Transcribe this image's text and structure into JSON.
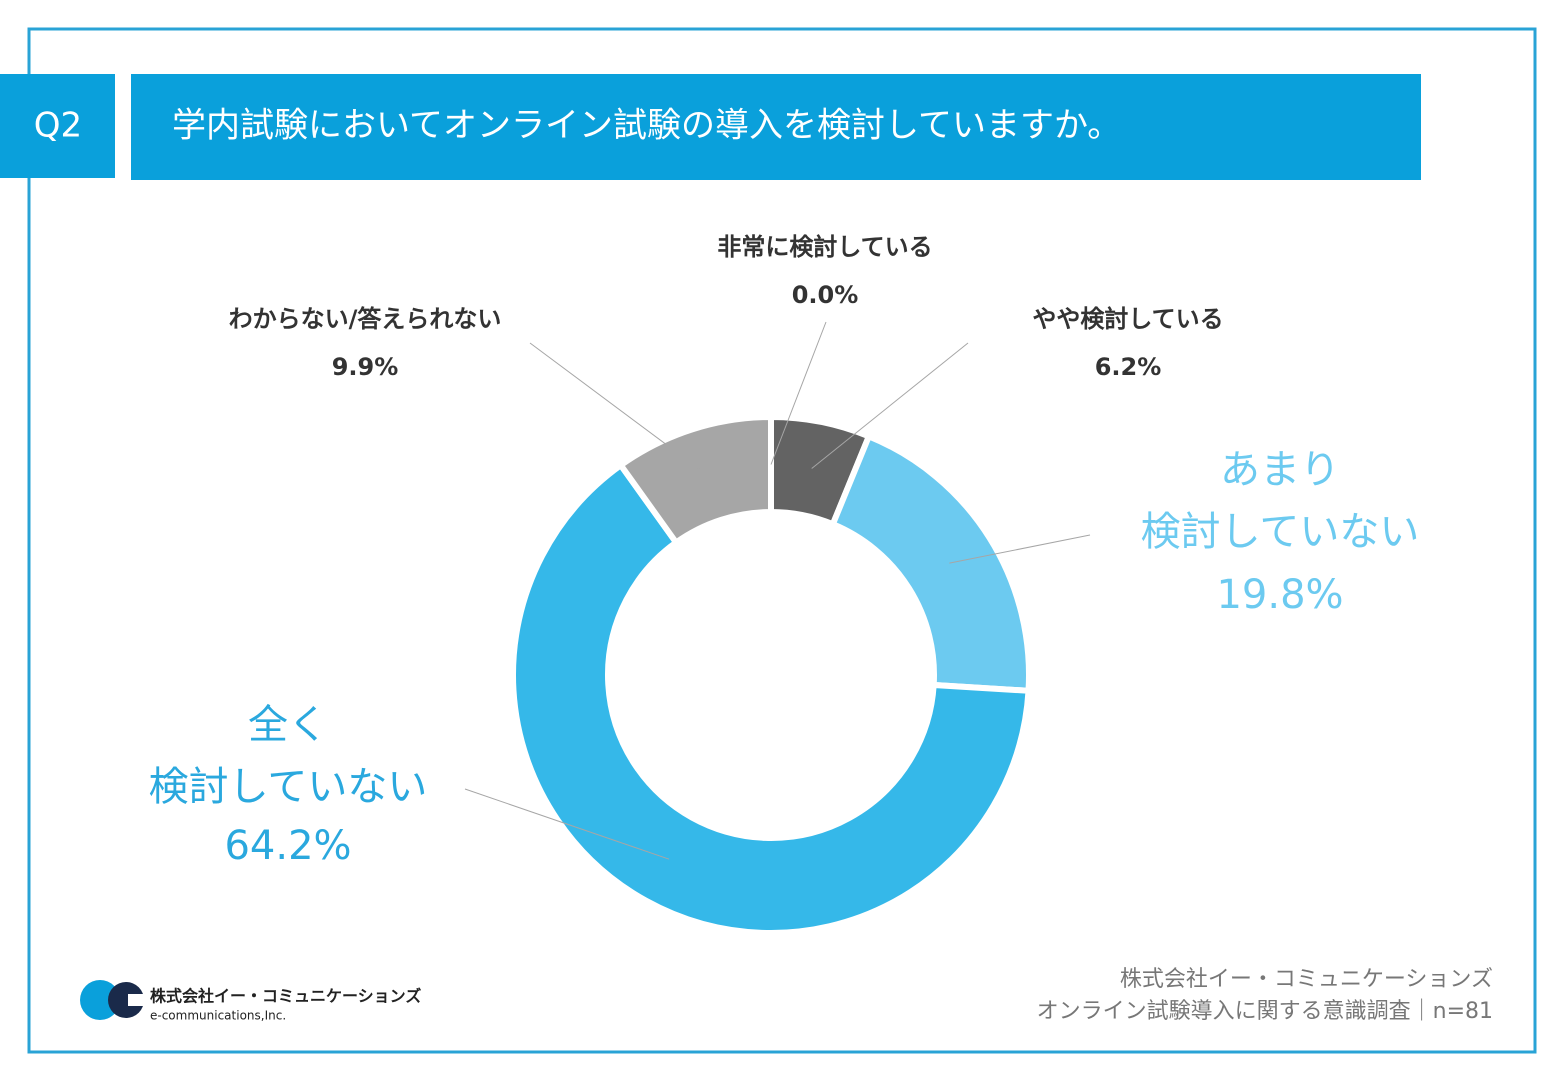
{
  "header": {
    "tag": "Q2",
    "title": "学内試験においてオンライン試験の導入を検討していますか。"
  },
  "chart_data": {
    "type": "donut",
    "categories": [
      "非常に検討している",
      "やや検討している",
      "あまり\n検討していない",
      "全く\n検討していない",
      "わからない/答えられない"
    ],
    "values": [
      0.0,
      6.2,
      19.8,
      64.2,
      9.9
    ],
    "value_labels": [
      "0.0%",
      "6.2%",
      "19.8%",
      "64.2%",
      "9.9%"
    ],
    "colors": [
      "#4d4d4d",
      "#636363",
      "#6ccaf0",
      "#35b8e9",
      "#a6a6a6"
    ]
  },
  "footer": {
    "company": "株式会社イー・コミュニケーションズ",
    "survey": "オンライン試験導入に関する意識調査｜n=81",
    "logo_name": "株式会社イー・コミュニケーションズ",
    "logo_sub": "e-communications,Inc."
  }
}
